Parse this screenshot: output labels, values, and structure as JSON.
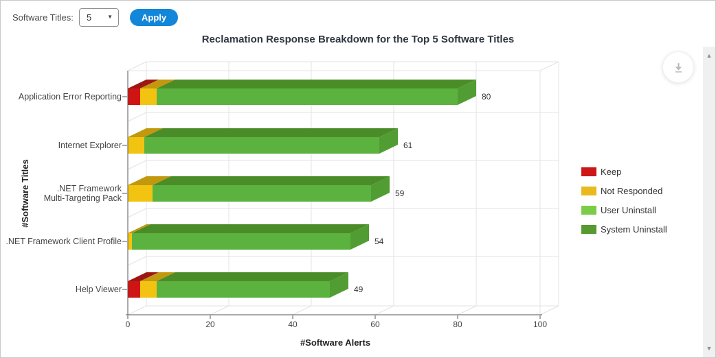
{
  "toolbar": {
    "software_titles_label": "Software Titles:",
    "dropdown_value": "5",
    "apply_label": "Apply"
  },
  "icons": {
    "dropdown": "▼",
    "scroll_up": "▲",
    "scroll_down": "▼",
    "download": "download-icon"
  },
  "colors": {
    "apply_button": "#1286d9",
    "axis": "#555555",
    "grid": "#e3e3e3",
    "label_text": "#444444"
  },
  "chart_data": {
    "type": "bar",
    "variant": "horizontal-stacked-3d",
    "title": "Reclamation Response Breakdown for the Top 5 Software Titles",
    "xlabel": "#Software Alerts",
    "ylabel": "#Software Titles",
    "xlim": [
      0,
      100
    ],
    "xticks": [
      0,
      20,
      40,
      60,
      80,
      100
    ],
    "grid": true,
    "legend_position": "right",
    "categories": [
      "Application Error Reporting",
      "Internet Explorer",
      ".NET Framework\nMulti-Targeting Pack",
      ".NET Framework Client Profile",
      "Help Viewer"
    ],
    "totals": [
      80,
      61,
      59,
      54,
      49
    ],
    "series": [
      {
        "name": "Keep",
        "values": [
          3,
          0,
          0,
          0,
          3
        ],
        "legend_color": "#cd1616",
        "front": "#d01414",
        "top": "#9d1712",
        "side": "#b51511"
      },
      {
        "name": "Not Responded",
        "values": [
          4,
          4,
          6,
          1,
          4
        ],
        "legend_color": "#e9ba1c",
        "front": "#f2c411",
        "top": "#c2980e",
        "side": "#d8ab10"
      },
      {
        "name": "User Uninstall",
        "values": [
          0,
          0,
          0,
          0,
          0
        ],
        "legend_color": "#7bcc49",
        "front": "#7bcc49",
        "top": "#63a83a",
        "side": "#6fba41"
      },
      {
        "name": "System Uninstall",
        "values": [
          73,
          57,
          53,
          53,
          42
        ],
        "legend_color": "#569a30",
        "front": "#5cb23e",
        "top": "#4a8c28",
        "side": "#519d33"
      }
    ]
  }
}
